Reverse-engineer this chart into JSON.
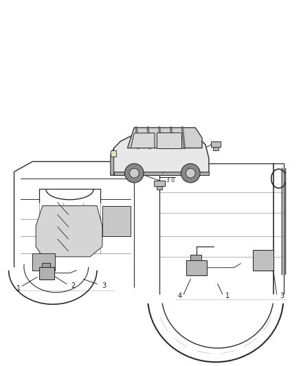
{
  "background_color": "#ffffff",
  "line_color": "#2a2a2a",
  "fig_width": 4.38,
  "fig_height": 5.33,
  "dpi": 100,
  "text_color": "#1a1a1a"
}
